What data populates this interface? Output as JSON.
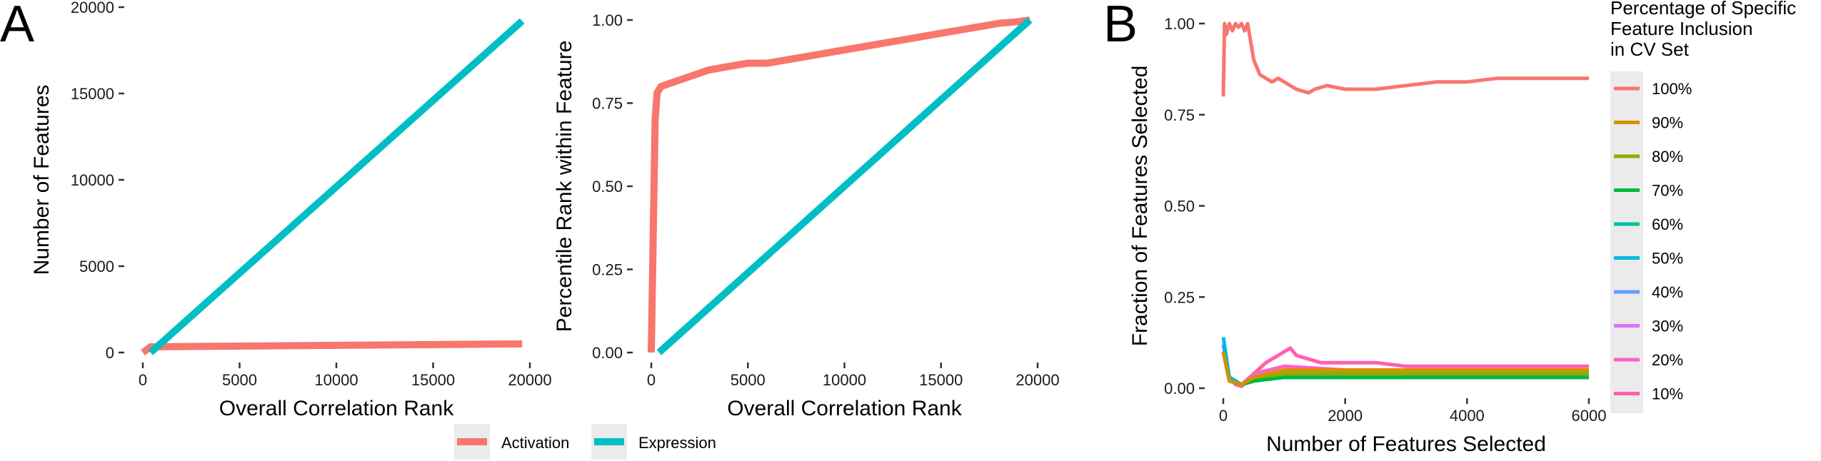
{
  "panel_labels": {
    "a": "A",
    "b": "B"
  },
  "colors": {
    "activation": "#F8766D",
    "expression": "#00BFC4",
    "key_bg": "#ebebeb",
    "tick": "#333333"
  },
  "chart_data": [
    {
      "id": "A-left",
      "type": "line",
      "xlabel": "Overall Correlation Rank",
      "ylabel": "Number of Features",
      "xlim": [
        0,
        20000
      ],
      "ylim": [
        0,
        20000
      ],
      "x_ticks": [
        0,
        5000,
        10000,
        15000,
        20000
      ],
      "x_tick_labels": [
        "0",
        "5000",
        "10000",
        "15000",
        "20000"
      ],
      "y_ticks": [
        0,
        5000,
        10000,
        15000,
        20000
      ],
      "y_tick_labels": [
        "0",
        "5000",
        "10000",
        "15000",
        "20000"
      ],
      "grid": false,
      "series": [
        {
          "name": "Activation",
          "color": "#F8766D",
          "x": [
            0,
            400,
            19600
          ],
          "y": [
            0,
            330,
            500
          ]
        },
        {
          "name": "Expression",
          "color": "#00BFC4",
          "x": [
            400,
            19600
          ],
          "y": [
            0,
            19200
          ]
        }
      ]
    },
    {
      "id": "A-right",
      "type": "line",
      "xlabel": "Overall Correlation Rank",
      "ylabel": "Percentile Rank within Feature",
      "xlim": [
        0,
        20000
      ],
      "ylim": [
        0,
        1
      ],
      "x_ticks": [
        0,
        5000,
        10000,
        15000,
        20000
      ],
      "x_tick_labels": [
        "0",
        "5000",
        "10000",
        "15000",
        "20000"
      ],
      "y_ticks": [
        0,
        0.25,
        0.5,
        0.75,
        1.0
      ],
      "y_tick_labels": [
        "0.00",
        "0.25",
        "0.50",
        "0.75",
        "1.00"
      ],
      "grid": false,
      "series": [
        {
          "name": "Activation",
          "color": "#F8766D",
          "x": [
            0,
            200,
            300,
            500,
            1000,
            2000,
            3000,
            4000,
            5000,
            6000,
            7000,
            8000,
            9000,
            10000,
            11000,
            12000,
            13000,
            14000,
            15000,
            16000,
            17000,
            18000,
            19000,
            19600
          ],
          "y": [
            0,
            0.7,
            0.78,
            0.8,
            0.81,
            0.83,
            0.85,
            0.86,
            0.87,
            0.87,
            0.88,
            0.89,
            0.9,
            0.91,
            0.92,
            0.93,
            0.94,
            0.95,
            0.96,
            0.97,
            0.98,
            0.99,
            0.995,
            1.0
          ]
        },
        {
          "name": "Expression",
          "color": "#00BFC4",
          "x": [
            400,
            19600
          ],
          "y": [
            0,
            1.0
          ]
        }
      ]
    },
    {
      "id": "B",
      "type": "line",
      "xlabel": "Number of Features Selected",
      "ylabel": "Fraction of Features Selected",
      "xlim": [
        0,
        6000
      ],
      "ylim": [
        0,
        1
      ],
      "x_ticks": [
        0,
        2000,
        4000,
        6000
      ],
      "x_tick_labels": [
        "0",
        "2000",
        "4000",
        "6000"
      ],
      "y_ticks": [
        0,
        0.25,
        0.5,
        0.75,
        1.0
      ],
      "y_tick_labels": [
        "0.00",
        "0.25",
        "0.50",
        "0.75",
        "1.00"
      ],
      "grid": false,
      "legend_title": "Percentage of Specific Feature Inclusion in CV Set",
      "legend_title_lines": [
        "Percentage of Specific",
        "Feature Inclusion",
        "in CV Set"
      ],
      "legend_position": "right",
      "series": [
        {
          "name": "100%",
          "color": "#F8766D",
          "x": [
            0,
            20,
            50,
            100,
            150,
            200,
            250,
            300,
            350,
            400,
            450,
            500,
            600,
            700,
            800,
            900,
            1000,
            1200,
            1400,
            1500,
            1700,
            2000,
            2500,
            3000,
            3500,
            4000,
            4500,
            5000,
            5500,
            6000
          ],
          "y": [
            0.8,
            1.0,
            0.97,
            1.0,
            0.98,
            1.0,
            0.99,
            1.0,
            0.98,
            1.0,
            0.95,
            0.9,
            0.86,
            0.85,
            0.84,
            0.85,
            0.84,
            0.82,
            0.81,
            0.82,
            0.83,
            0.82,
            0.82,
            0.83,
            0.84,
            0.84,
            0.85,
            0.85,
            0.85,
            0.85
          ]
        },
        {
          "name": "90%",
          "color": "#D39200",
          "x": [
            0,
            100,
            300,
            500,
            1000,
            2000,
            3000,
            4000,
            5000,
            6000
          ],
          "y": [
            0.1,
            0.02,
            0.01,
            0.03,
            0.05,
            0.05,
            0.05,
            0.05,
            0.05,
            0.05
          ]
        },
        {
          "name": "80%",
          "color": "#93AA00",
          "x": [
            0,
            100,
            300,
            500,
            1000,
            2000,
            3000,
            4000,
            5000,
            6000
          ],
          "y": [
            0.1,
            0.02,
            0.01,
            0.03,
            0.04,
            0.04,
            0.04,
            0.04,
            0.04,
            0.04
          ]
        },
        {
          "name": "70%",
          "color": "#00BA38",
          "x": [
            0,
            100,
            300,
            500,
            1000,
            2000,
            3000,
            4000,
            5000,
            6000
          ],
          "y": [
            0.1,
            0.02,
            0.01,
            0.02,
            0.03,
            0.03,
            0.03,
            0.03,
            0.03,
            0.03
          ]
        },
        {
          "name": "60%",
          "color": "#00C19F",
          "x": [
            0,
            100,
            300,
            500,
            1000,
            2000,
            3000,
            4000,
            5000,
            6000
          ],
          "y": [
            0.1,
            0.02,
            0.01,
            0.02,
            0.03,
            0.03,
            0.03,
            0.03,
            0.03,
            0.03
          ]
        },
        {
          "name": "50%",
          "color": "#00B9E3",
          "x": [
            0,
            100,
            300,
            500,
            1000,
            2000,
            3000,
            4000,
            5000,
            6000
          ],
          "y": [
            0.14,
            0.03,
            0.01,
            0.02,
            0.03,
            0.03,
            0.03,
            0.03,
            0.03,
            0.03
          ]
        },
        {
          "name": "40%",
          "color": "#619CFF",
          "x": [
            0,
            100,
            300,
            500,
            1000,
            2000,
            3000,
            4000,
            5000,
            6000
          ],
          "y": [
            0.12,
            0.03,
            0.01,
            0.02,
            0.03,
            0.03,
            0.03,
            0.03,
            0.03,
            0.03
          ]
        },
        {
          "name": "30%",
          "color": "#DB72FB",
          "x": [
            0,
            100,
            300,
            500,
            1000,
            2000,
            3000,
            4000,
            5000,
            6000
          ],
          "y": [
            0.12,
            0.03,
            0.01,
            0.03,
            0.04,
            0.04,
            0.04,
            0.04,
            0.04,
            0.04
          ]
        },
        {
          "name": "20%",
          "color": "#FF61C3",
          "x": [
            0,
            100,
            300,
            500,
            1000,
            2000,
            3000,
            4000,
            5000,
            6000
          ],
          "y": [
            0.12,
            0.03,
            0.01,
            0.04,
            0.06,
            0.05,
            0.05,
            0.05,
            0.05,
            0.05
          ]
        },
        {
          "name": "10%",
          "color": "#FF5FB0",
          "x": [
            0,
            100,
            200,
            300,
            400,
            500,
            700,
            900,
            1000,
            1100,
            1200,
            1400,
            1600,
            2000,
            2500,
            3000,
            3500,
            4000,
            4500,
            5000,
            5500,
            6000
          ],
          "y": [
            0.1,
            0.03,
            0.01,
            0.005,
            0.02,
            0.04,
            0.07,
            0.09,
            0.1,
            0.11,
            0.09,
            0.08,
            0.07,
            0.07,
            0.07,
            0.06,
            0.06,
            0.06,
            0.06,
            0.06,
            0.06,
            0.06
          ]
        }
      ]
    }
  ],
  "bottom_legend": [
    {
      "label": "Activation",
      "color": "#F8766D"
    },
    {
      "label": "Expression",
      "color": "#00BFC4"
    }
  ]
}
